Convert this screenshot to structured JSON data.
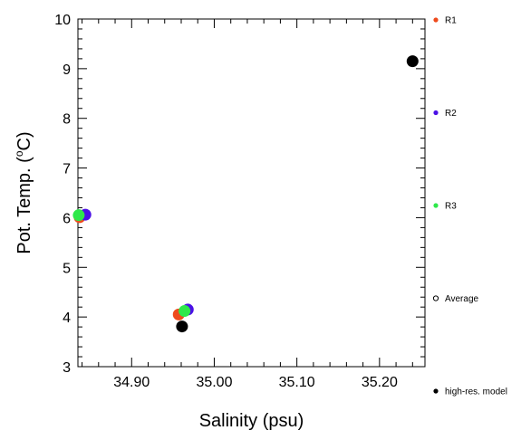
{
  "chart_data": {
    "type": "scatter",
    "xlabel": "Salinity (psu)",
    "ylabel_prefix": "Pot. Temp. (",
    "ylabel_deg": "o",
    "ylabel_suffix": "C)",
    "xlim": [
      34.835,
      35.255
    ],
    "ylim": [
      3,
      10
    ],
    "xticks": [
      34.9,
      35.0,
      35.1,
      35.2
    ],
    "xtick_labels": [
      "34.90",
      "35.00",
      "35.10",
      "35.20"
    ],
    "yticks": [
      3,
      4,
      5,
      6,
      7,
      8,
      9,
      10
    ],
    "ytick_labels": [
      "3",
      "4",
      "5",
      "6",
      "7",
      "8",
      "9",
      "10"
    ],
    "grid": false,
    "legend_position": "right",
    "series": [
      {
        "name": "R1",
        "color": "#ee4a1c",
        "marker": "filled-circle",
        "points": [
          {
            "x": 34.837,
            "y": 6.01
          },
          {
            "x": 34.957,
            "y": 4.05
          }
        ]
      },
      {
        "name": "R2",
        "color": "#4b10e6",
        "marker": "filled-circle",
        "points": [
          {
            "x": 34.844,
            "y": 6.06
          },
          {
            "x": 34.968,
            "y": 4.15
          }
        ]
      },
      {
        "name": "R3",
        "color": "#2ee84a",
        "marker": "filled-circle",
        "points": [
          {
            "x": 34.836,
            "y": 6.05
          },
          {
            "x": 34.964,
            "y": 4.12
          }
        ]
      },
      {
        "name": "Average",
        "color": "#000000",
        "marker": "open-circle",
        "points": []
      },
      {
        "name": "high-res. model",
        "color": "#000000",
        "marker": "filled-circle",
        "points": [
          {
            "x": 34.961,
            "y": 3.81
          },
          {
            "x": 35.24,
            "y": 9.15
          }
        ]
      }
    ]
  }
}
